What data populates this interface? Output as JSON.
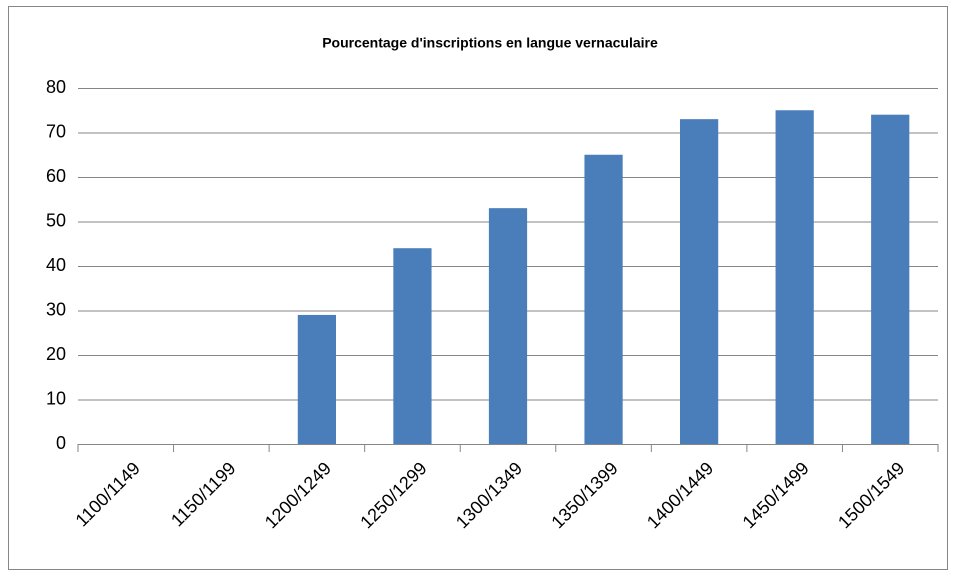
{
  "chart_data": {
    "type": "bar",
    "title": "Pourcentage  d'inscriptions en langue vernaculaire",
    "categories": [
      "1100/1149",
      "1150/1199",
      "1200/1249",
      "1250/1299",
      "1300/1349",
      "1350/1399",
      "1400/1449",
      "1450/1499",
      "1500/1549"
    ],
    "values": [
      0,
      0,
      29,
      44,
      53,
      65,
      73,
      75,
      74
    ],
    "color": "#4a7ebb",
    "ylim": [
      0,
      80
    ],
    "yticks": [
      0,
      10,
      20,
      30,
      40,
      50,
      60,
      70,
      80
    ],
    "grid": true
  }
}
